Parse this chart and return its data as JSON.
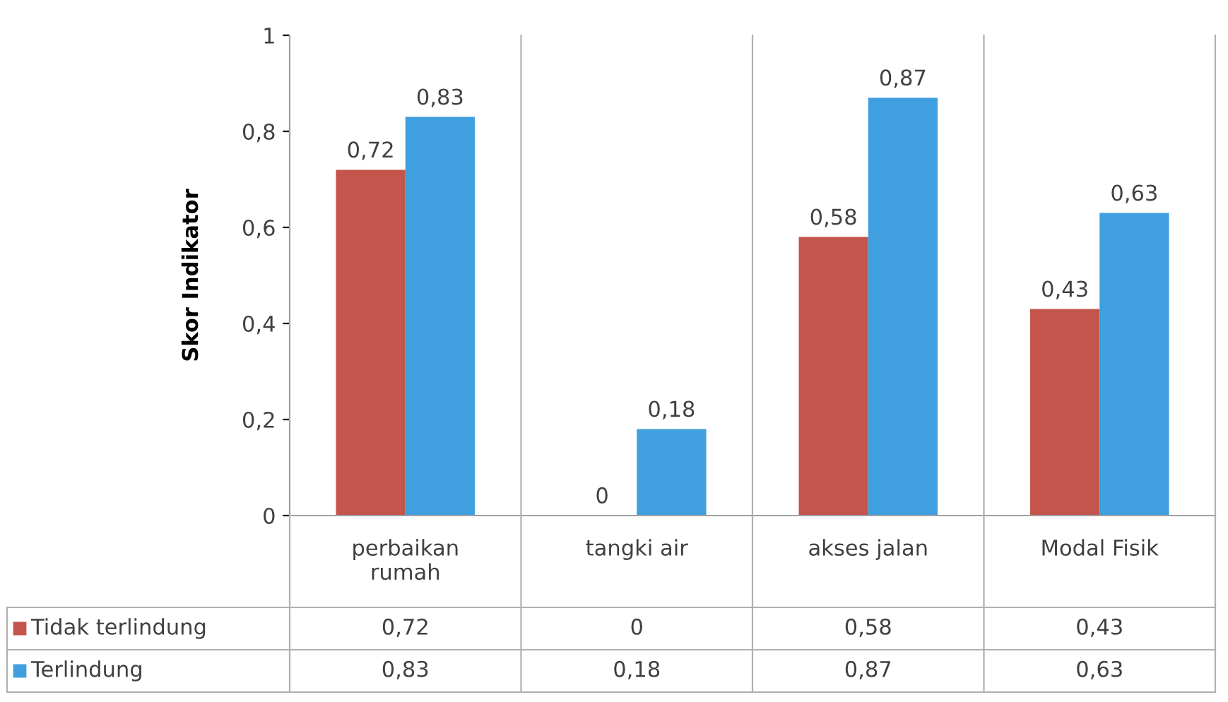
{
  "chart_data": {
    "type": "bar",
    "ylabel": "Skor Indikator",
    "categories": [
      "perbaikan\nrumah",
      "tangki air",
      "akses jalan",
      "Modal Fisik"
    ],
    "series": [
      {
        "name": "Tidak terlindung",
        "color": "#c4554c",
        "values": [
          0.72,
          0,
          0.58,
          0.43
        ],
        "value_labels": [
          "0,72",
          "0",
          "0,58",
          "0,43"
        ]
      },
      {
        "name": "Terlindung",
        "color": "#3f9fdf",
        "values": [
          0.83,
          0.18,
          0.87,
          0.63
        ],
        "value_labels": [
          "0,83",
          "0,18",
          "0,87",
          "0,63"
        ]
      }
    ],
    "ylim": [
      0,
      1
    ],
    "yticks": [
      0,
      {
        "value": 0.2,
        "label": "0,2"
      },
      {
        "value": 0.4,
        "label": "0,4"
      },
      {
        "value": 0.6,
        "label": "0,6"
      },
      {
        "value": 0.8,
        "label": "0,8"
      },
      1
    ],
    "grid": false,
    "legend": "bottom"
  }
}
